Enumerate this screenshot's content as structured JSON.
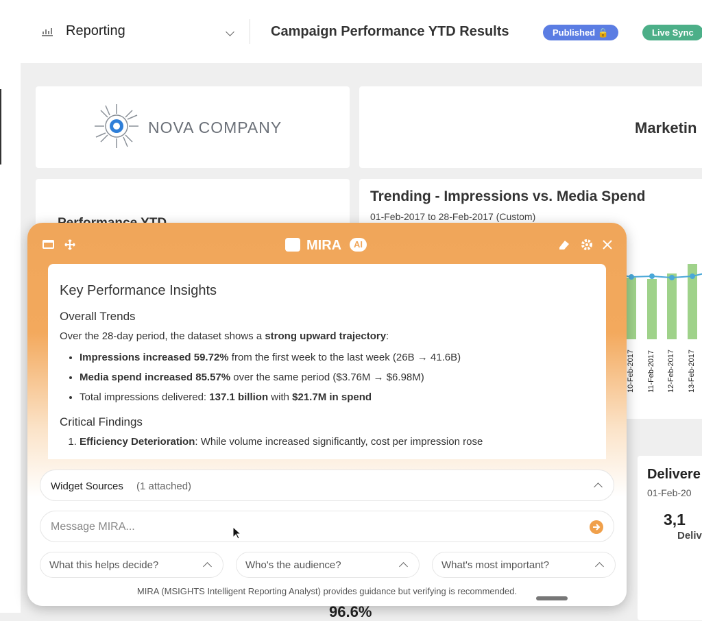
{
  "header": {
    "menu": "Reporting",
    "title": "Campaign Performance YTD Results",
    "badges": [
      "Published",
      "Live Sync"
    ]
  },
  "dashboard": {
    "logo_text": "NOVA COMPANY",
    "marketing_title": "Marketin",
    "performance_title": "Performance YTD",
    "trending": {
      "title": "Trending - Impressions vs. Media Spend",
      "subtitle": "01-Feb-2017 to 28-Feb-2017 (Custom)",
      "x_labels": [
        "10-Feb-2017",
        "11-Feb-2017",
        "12-Feb-2017",
        "13-Feb-2017"
      ]
    },
    "delivered": {
      "title": "Delivere",
      "subtitle": "01-Feb-20",
      "value": "3,1",
      "label": "Deliv"
    },
    "bottom_value": "96.6%"
  },
  "mira": {
    "title": "MIRA",
    "badge": "AI",
    "heading": "Key Performance Insights",
    "sections": [
      {
        "title": "Overall Trends",
        "intro": [
          {
            "text": "Over the 28-day period, the dataset shows a "
          },
          {
            "text": "strong upward trajectory",
            "bold": true
          },
          {
            "text": ":"
          }
        ],
        "bullets": [
          [
            {
              "text": "Impressions increased 59.72%",
              "bold": true
            },
            {
              "text": " from the first week to the last week (26B → 41.6B)"
            }
          ],
          [
            {
              "text": "Media spend increased 85.57%",
              "bold": true
            },
            {
              "text": " over the same period ($3.76M → $6.98M)"
            }
          ],
          [
            {
              "text": "Total impressions delivered: "
            },
            {
              "text": "137.1 billion",
              "bold": true
            },
            {
              "text": " with "
            },
            {
              "text": "$21.7M in spend",
              "bold": true
            }
          ]
        ]
      },
      {
        "title": "Critical Findings",
        "numbered": [
          [
            {
              "text": "Efficiency Deterioration",
              "bold": true
            },
            {
              "text": ": While volume increased significantly, cost per impression rose"
            }
          ]
        ]
      }
    ],
    "sources": {
      "label": "Widget Sources",
      "count": "(1 attached)"
    },
    "input_placeholder": "Message MIRA...",
    "suggestions": [
      "What this helps decide?",
      "Who's the audience?",
      "What's most important?"
    ],
    "disclaimer": "MIRA (MSIGHTS Intelligent Reporting Analyst) provides guidance but verifying is recommended."
  }
}
